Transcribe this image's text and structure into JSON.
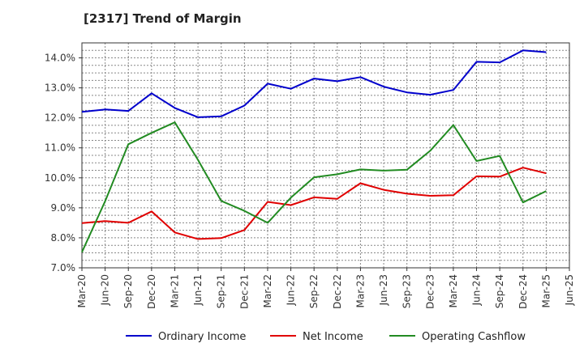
{
  "chart_data": {
    "type": "line",
    "title": "[2317]  Trend of Margin",
    "xlabel": "",
    "ylabel": "",
    "ylim": [
      7.0,
      14.5
    ],
    "yticks": [
      7.0,
      8.0,
      9.0,
      10.0,
      11.0,
      12.0,
      13.0,
      14.0
    ],
    "ytick_labels": [
      "7.0%",
      "8.0%",
      "9.0%",
      "10.0%",
      "11.0%",
      "12.0%",
      "13.0%",
      "14.0%"
    ],
    "grid": true,
    "legend_position": "bottom",
    "categories": [
      "Mar-20",
      "Jun-20",
      "Sep-20",
      "Dec-20",
      "Mar-21",
      "Jun-21",
      "Sep-21",
      "Dec-21",
      "Mar-22",
      "Jun-22",
      "Sep-22",
      "Dec-22",
      "Mar-23",
      "Jun-23",
      "Sep-23",
      "Dec-23",
      "Mar-24",
      "Jun-24",
      "Sep-24",
      "Dec-24",
      "Mar-25",
      "Jun-25"
    ],
    "series": [
      {
        "name": "Ordinary Income",
        "color": "#0000cc",
        "values": [
          12.2,
          12.28,
          12.23,
          12.82,
          12.33,
          12.02,
          12.05,
          12.41,
          13.14,
          12.97,
          13.31,
          13.22,
          13.36,
          13.04,
          12.85,
          12.77,
          12.93,
          13.87,
          13.85,
          14.25,
          14.19,
          null
        ]
      },
      {
        "name": "Net Income",
        "color": "#e00000",
        "values": [
          8.49,
          8.56,
          8.5,
          8.88,
          8.18,
          7.96,
          7.99,
          8.26,
          9.2,
          9.09,
          9.35,
          9.3,
          9.82,
          9.6,
          9.47,
          9.4,
          9.42,
          10.05,
          10.04,
          10.34,
          10.15,
          null
        ]
      },
      {
        "name": "Operating Cashflow",
        "color": "#228b22",
        "values": [
          7.52,
          9.22,
          11.12,
          11.5,
          11.85,
          10.6,
          9.23,
          8.9,
          8.5,
          9.34,
          10.02,
          10.12,
          10.28,
          10.24,
          10.27,
          10.9,
          11.76,
          10.56,
          10.73,
          9.18,
          9.56,
          null
        ]
      }
    ]
  }
}
